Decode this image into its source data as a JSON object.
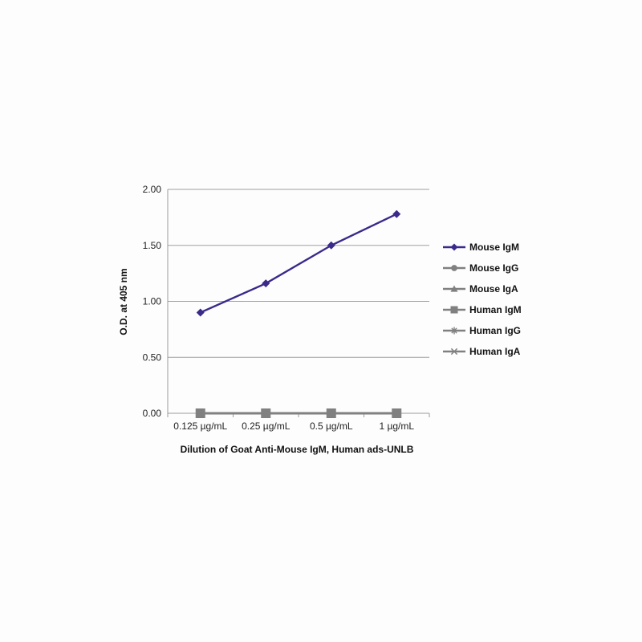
{
  "chart_data": {
    "type": "line",
    "title": "",
    "xlabel": "Dilution of Goat Anti-Mouse IgM, Human ads-UNLB",
    "ylabel": "O.D. at 405 nm",
    "categories": [
      "0.125 µg/mL",
      "0.25 µg/mL",
      "0.5 µg/mL",
      "1 µg/mL"
    ],
    "ylim": [
      0,
      2
    ],
    "yticks": [
      "0.00",
      "0.50",
      "1.00",
      "1.50",
      "2.00"
    ],
    "grid": true,
    "legend_position": "right",
    "series": [
      {
        "name": "Mouse IgM",
        "values": [
          0.9,
          1.16,
          1.5,
          1.78
        ],
        "color": "#3b2a8a",
        "marker": "diamond"
      },
      {
        "name": "Mouse IgG",
        "values": [
          0.0,
          0.0,
          0.0,
          0.0
        ],
        "color": "#808080",
        "marker": "circle"
      },
      {
        "name": "Mouse IgA",
        "values": [
          0.0,
          0.0,
          0.0,
          0.0
        ],
        "color": "#808080",
        "marker": "triangle"
      },
      {
        "name": "Human IgM",
        "values": [
          0.0,
          0.0,
          0.0,
          0.0
        ],
        "color": "#808080",
        "marker": "square"
      },
      {
        "name": "Human IgG",
        "values": [
          0.0,
          0.0,
          0.0,
          0.0
        ],
        "color": "#808080",
        "marker": "star"
      },
      {
        "name": "Human IgA",
        "values": [
          0.0,
          0.0,
          0.0,
          0.0
        ],
        "color": "#808080",
        "marker": "x"
      }
    ]
  }
}
